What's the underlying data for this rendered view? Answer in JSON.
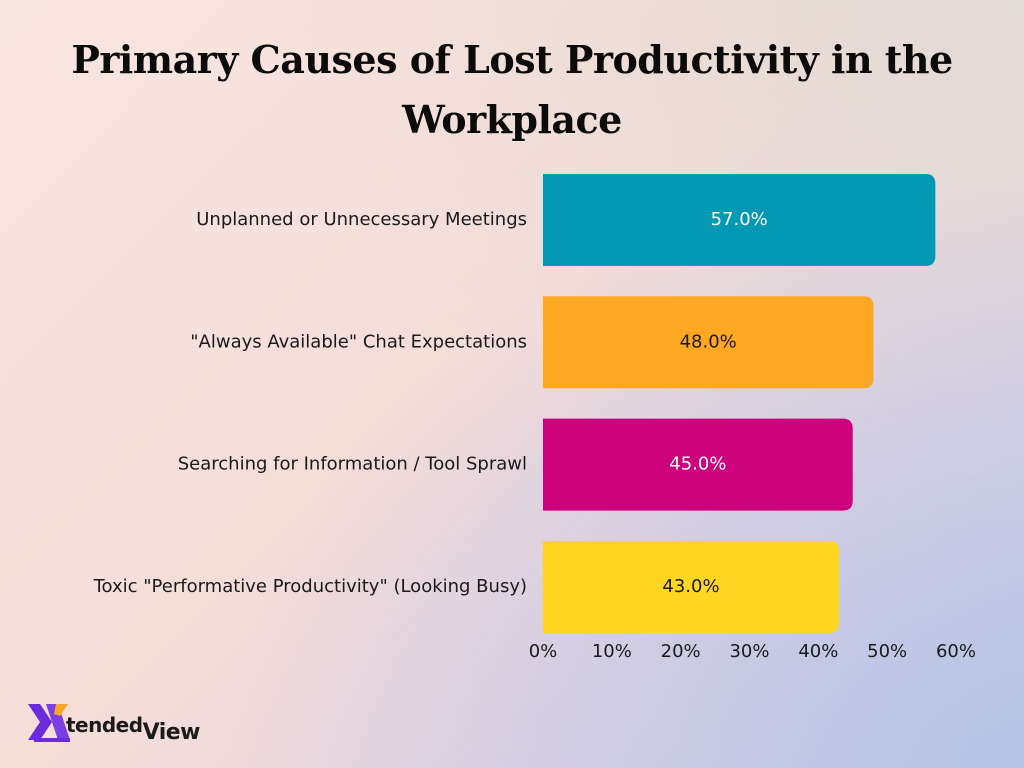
{
  "chart_data": {
    "type": "bar",
    "orientation": "horizontal",
    "title": "Primary Causes of Lost Productivity in the Workplace",
    "categories": [
      "Unplanned or Unnecessary Meetings",
      "\"Always Available\" Chat Expectations",
      "Searching for Information / Tool Sprawl",
      "Toxic \"Performative Productivity\" (Looking Busy)"
    ],
    "values": [
      57.0,
      48.0,
      45.0,
      43.0
    ],
    "value_labels": [
      "57.0%",
      "48.0%",
      "45.0%",
      "43.0%"
    ],
    "colors": [
      "#0399b5",
      "#fea722",
      "#cc037d",
      "#fed520"
    ],
    "value_label_colors": [
      "#ffffff",
      "#1a1a1a",
      "#ffffff",
      "#1a1a1a"
    ],
    "xlim": [
      0,
      60
    ],
    "xticks": [
      0,
      10,
      20,
      30,
      40,
      50,
      60
    ],
    "xtick_labels": [
      "0%",
      "10%",
      "20%",
      "30%",
      "40%",
      "50%",
      "60%"
    ],
    "xlabel": "",
    "ylabel": "",
    "grid": false,
    "legend": "none"
  },
  "logo": {
    "word1": "tended",
    "word2": "View",
    "colors": {
      "x_purple": "#6c2bd9",
      "x_gold": "#f5a623"
    }
  }
}
